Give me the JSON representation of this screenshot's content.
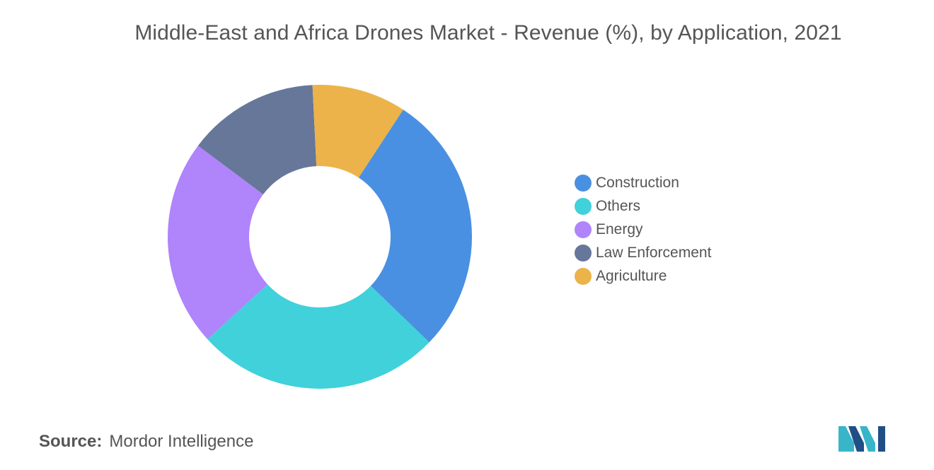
{
  "chart_data": {
    "type": "pie",
    "donut": true,
    "title": "Middle-East and Africa Drones Market - Revenue (%), by Application, 2021",
    "categories": [
      "Construction",
      "Others",
      "Energy",
      "Law Enforcement",
      "Agriculture"
    ],
    "values": [
      28,
      26,
      22,
      14,
      10
    ],
    "colors": [
      "#4a90e2",
      "#41d1da",
      "#b084fb",
      "#66779a",
      "#ecb34a"
    ],
    "legend_position": "right"
  },
  "source": {
    "label": "Source:",
    "value": "Mordor Intelligence"
  },
  "logo": {
    "icon": "mordor-intelligence-logo-icon"
  }
}
